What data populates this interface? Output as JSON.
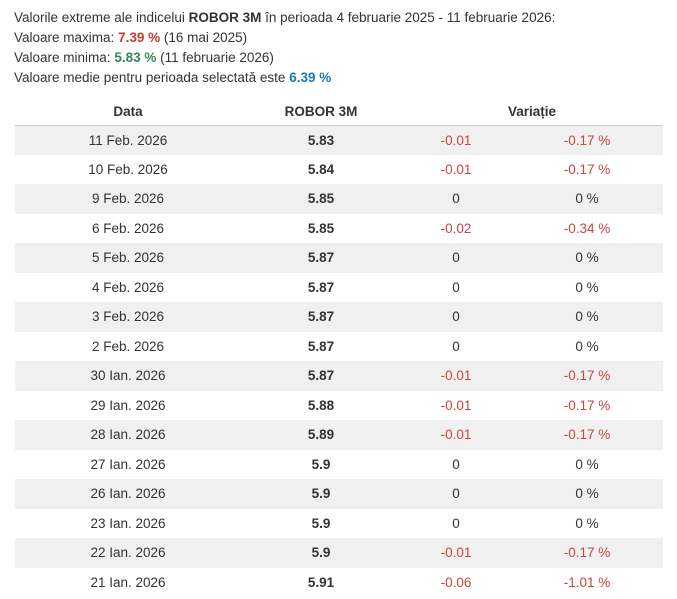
{
  "summary": {
    "intro_prefix": "Valorile extreme ale indicelui",
    "index_name": "ROBOR 3M",
    "intro_suffix": "în perioada 4 februarie 2025 - 11 februarie 2026:",
    "max_label": "Valoare maxima:",
    "max_value": "7.39 %",
    "max_date": "(16 mai 2025)",
    "min_label": "Valoare minima:",
    "min_value": "5.83 %",
    "min_date": "(11 februarie 2026)",
    "avg_label": "Valoare medie pentru perioada selectată este",
    "avg_value": "6.39 %"
  },
  "table": {
    "headers": {
      "date": "Data",
      "value": "ROBOR 3M",
      "variation": "Variație"
    },
    "rows": [
      {
        "date": "11 Feb. 2026",
        "value": "5.83",
        "change": "-0.01",
        "change_pct": "-0.17 %",
        "negative": true
      },
      {
        "date": "10 Feb. 2026",
        "value": "5.84",
        "change": "-0.01",
        "change_pct": "-0.17 %",
        "negative": true
      },
      {
        "date": "9 Feb. 2026",
        "value": "5.85",
        "change": "0",
        "change_pct": "0 %",
        "negative": false
      },
      {
        "date": "6 Feb. 2026",
        "value": "5.85",
        "change": "-0.02",
        "change_pct": "-0.34 %",
        "negative": true
      },
      {
        "date": "5 Feb. 2026",
        "value": "5.87",
        "change": "0",
        "change_pct": "0 %",
        "negative": false
      },
      {
        "date": "4 Feb. 2026",
        "value": "5.87",
        "change": "0",
        "change_pct": "0 %",
        "negative": false
      },
      {
        "date": "3 Feb. 2026",
        "value": "5.87",
        "change": "0",
        "change_pct": "0 %",
        "negative": false
      },
      {
        "date": "2 Feb. 2026",
        "value": "5.87",
        "change": "0",
        "change_pct": "0 %",
        "negative": false
      },
      {
        "date": "30 Ian. 2026",
        "value": "5.87",
        "change": "-0.01",
        "change_pct": "-0.17 %",
        "negative": true
      },
      {
        "date": "29 Ian. 2026",
        "value": "5.88",
        "change": "-0.01",
        "change_pct": "-0.17 %",
        "negative": true
      },
      {
        "date": "28 Ian. 2026",
        "value": "5.89",
        "change": "-0.01",
        "change_pct": "-0.17 %",
        "negative": true
      },
      {
        "date": "27 Ian. 2026",
        "value": "5.9",
        "change": "0",
        "change_pct": "0 %",
        "negative": false
      },
      {
        "date": "26 Ian. 2026",
        "value": "5.9",
        "change": "0",
        "change_pct": "0 %",
        "negative": false
      },
      {
        "date": "23 Ian. 2026",
        "value": "5.9",
        "change": "0",
        "change_pct": "0 %",
        "negative": false
      },
      {
        "date": "22 Ian. 2026",
        "value": "5.9",
        "change": "-0.01",
        "change_pct": "-0.17 %",
        "negative": true
      },
      {
        "date": "21 Ian. 2026",
        "value": "5.91",
        "change": "-0.06",
        "change_pct": "-1.01 %",
        "negative": true
      }
    ]
  },
  "colors": {
    "text": "#333333",
    "max_red": "#c43b32",
    "negative_red": "#c9453e",
    "min_green": "#2e8b57",
    "avg_blue": "#1d7bb4",
    "stripe_gray": "#f0f0f0",
    "header_border": "#cccccc"
  }
}
